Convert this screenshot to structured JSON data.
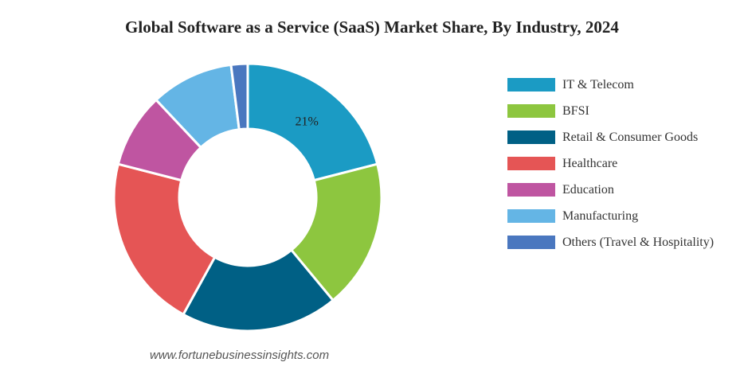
{
  "chart_data": {
    "type": "pie",
    "title": "Global Software as a Service (SaaS) Market Share, By Industry, 2024",
    "categories": [
      "IT & Telecom",
      "BFSI",
      "Retail & Consumer Goods",
      "Healthcare",
      "Education",
      "Manufacturing",
      "Others (Travel & Hospitality)"
    ],
    "values": [
      21,
      18,
      19,
      21,
      9,
      10,
      2
    ],
    "colors": [
      "#1b9bc4",
      "#8dc63f",
      "#006085",
      "#e55555",
      "#bf55a1",
      "#64b5e5",
      "#4a77bf"
    ],
    "data_labels": [
      "21%",
      "",
      "",
      "",
      "",
      "",
      ""
    ],
    "donut": true,
    "legend_position": "right"
  },
  "footer": {
    "source": "www.fortunebusinessinsights.com"
  }
}
